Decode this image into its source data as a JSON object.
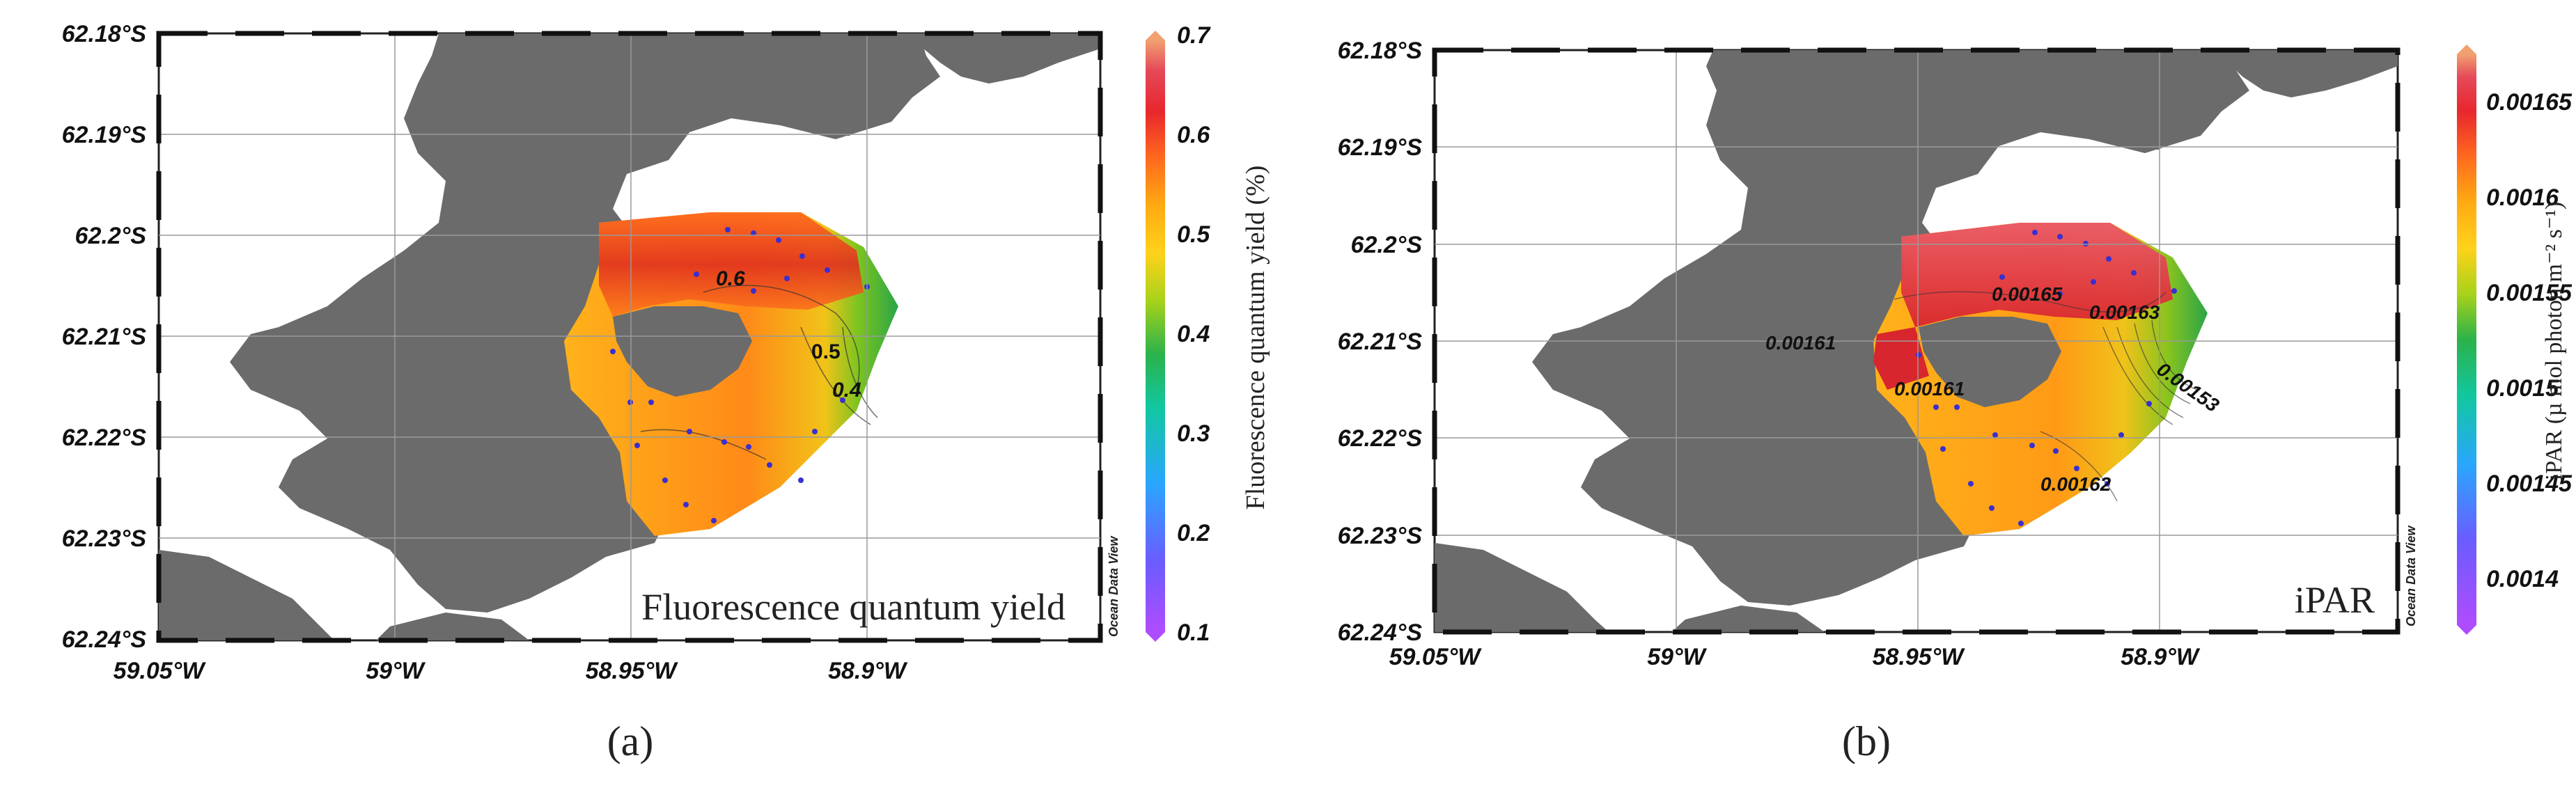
{
  "panels": [
    {
      "id": "a",
      "caption": "(a)",
      "map_title": "Fluorescence quantum yield",
      "watermark": "Ocean Data View",
      "lat_labels": [
        "62.18°S",
        "62.19°S",
        "62.2°S",
        "62.21°S",
        "62.22°S",
        "62.23°S",
        "62.24°S"
      ],
      "lon_labels": [
        "59.05°W",
        "59°W",
        "58.95°W",
        "58.9°W"
      ],
      "colorbar": {
        "label": "Fluorescence quantum yield (%)",
        "ticks": [
          "0.1",
          "0.2",
          "0.3",
          "0.4",
          "0.5",
          "0.6",
          "0.7"
        ],
        "min": 0.1,
        "max": 0.7
      },
      "contour_labels": [
        "0.6",
        "0.5",
        "0.4"
      ]
    },
    {
      "id": "b",
      "caption": "(b)",
      "map_title": "iPAR",
      "watermark": "Ocean Data View",
      "lat_labels": [
        "62.18°S",
        "62.19°S",
        "62.2°S",
        "62.21°S",
        "62.22°S",
        "62.23°S",
        "62.24°S"
      ],
      "lon_labels": [
        "59.05°W",
        "59°W",
        "58.95°W",
        "58.9°W"
      ],
      "colorbar": {
        "label": "iPAR (µ mol photon m⁻² s⁻¹)",
        "ticks": [
          "0.0014",
          "0.00145",
          "0.0015",
          "0.00155",
          "0.0016",
          "0.00165"
        ],
        "min": 0.00135,
        "max": 0.00168
      },
      "contour_labels": [
        "0.00165",
        "0.00163",
        "0.00161",
        "0.00161",
        "0.00153",
        "0.00162"
      ]
    }
  ],
  "colors": {
    "land": "#6b6b6b",
    "grid": "#9a9a9a",
    "station": "#3a2fd0",
    "colorscale": [
      "#b04cff",
      "#6a5cff",
      "#2aa6ff",
      "#11c7a0",
      "#2bb24a",
      "#a8d21a",
      "#ffd21a",
      "#ffab12",
      "#ff6a1e",
      "#e8262e",
      "#e54a5a",
      "#f1a070"
    ]
  }
}
